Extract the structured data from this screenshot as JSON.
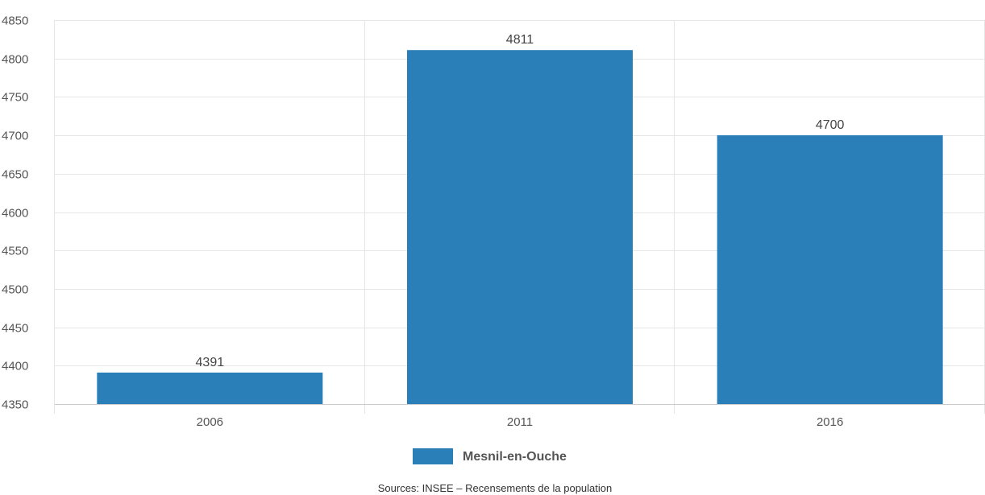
{
  "chart_data": {
    "type": "bar",
    "categories": [
      "2006",
      "2011",
      "2016"
    ],
    "series": [
      {
        "name": "Mesnil-en-Ouche",
        "values": [
          4391,
          4811,
          4700
        ],
        "color": "#2b7fb8"
      }
    ],
    "data_labels": [
      "4391",
      "4811",
      "4700"
    ],
    "ylim": [
      4350,
      4850
    ],
    "y_ticks": [
      4350,
      4400,
      4450,
      4500,
      4550,
      4600,
      4650,
      4700,
      4750,
      4800,
      4850
    ],
    "grid": true,
    "legend_position": "bottom-center",
    "xlabel": "",
    "ylabel": "",
    "title": ""
  },
  "source_note": "Sources: INSEE – Recensements de la population",
  "colors": {
    "bar": "#2b7fb8",
    "grid": "#e6e6e6",
    "axis": "#cccccc"
  }
}
